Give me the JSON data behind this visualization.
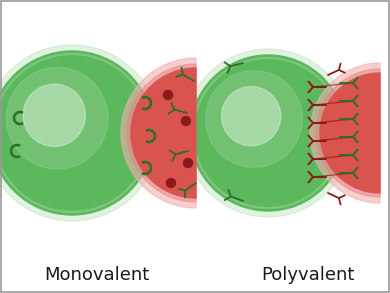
{
  "bg_color": "#ffffff",
  "green_color": "#5cb85c",
  "green_rim": "#4a9e4a",
  "green_light": "#8fce8f",
  "green_inner": "#b8e0b8",
  "green_innermost": "#d8f0d8",
  "red_color": "#d9534f",
  "red_halo": "#e88080",
  "red_pink": "#f0b0b0",
  "dark_green": "#2a6e2a",
  "dark_red": "#8b1a1a",
  "label_mono": "Monovalent",
  "label_poly": "Polyvalent",
  "label_fontsize": 13,
  "border_color": "#999999",
  "figw": 3.9,
  "figh": 2.93,
  "dpi": 100
}
